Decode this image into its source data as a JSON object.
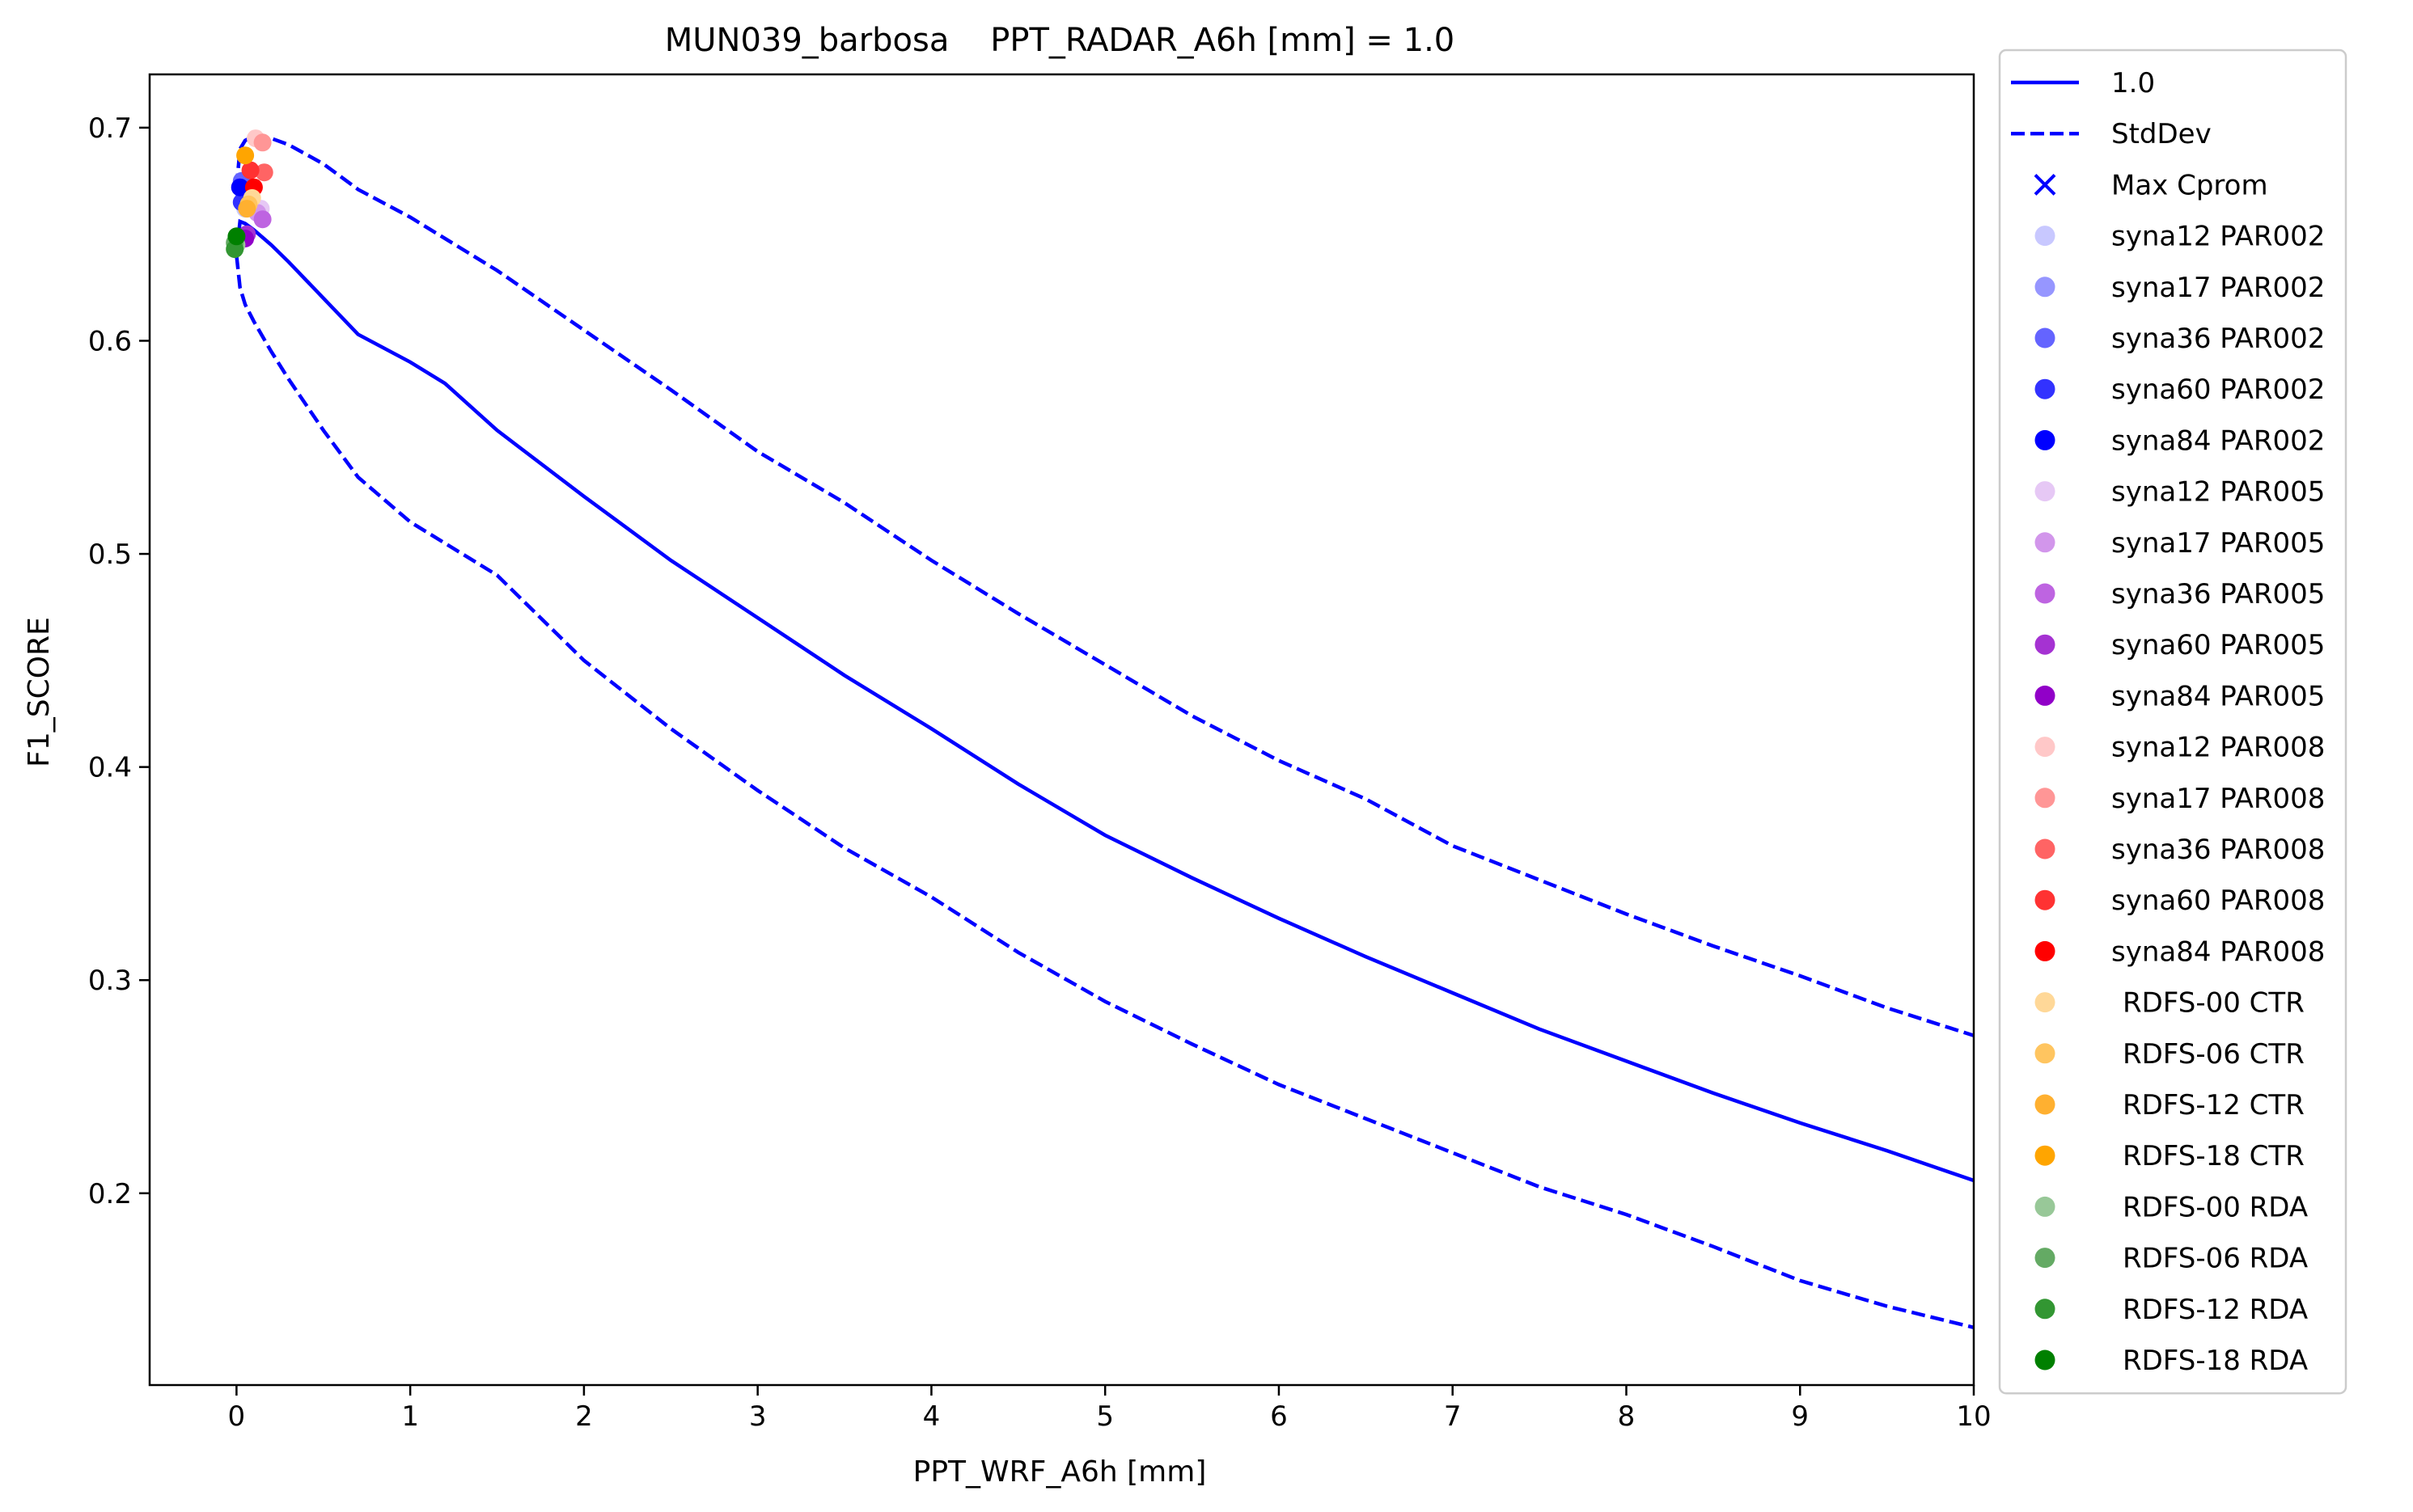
{
  "chart_data": {
    "type": "line",
    "title": "MUN039_barbosa    PPT_RADAR_A6h [mm] = 1.0",
    "xlabel": "PPT_WRF_A6h [mm]",
    "ylabel": "F1_SCORE",
    "xlim": [
      -0.5,
      10
    ],
    "ylim": [
      0.11,
      0.725
    ],
    "xticks": [
      0,
      1,
      2,
      3,
      4,
      5,
      6,
      7,
      8,
      9,
      10
    ],
    "xtick_labels": [
      "0",
      "1",
      "2",
      "3",
      "4",
      "5",
      "6",
      "7",
      "8",
      "9",
      "10"
    ],
    "yticks": [
      0.2,
      0.3,
      0.4,
      0.5,
      0.6,
      0.7
    ],
    "ytick_labels": [
      "0.2",
      "0.3",
      "0.4",
      "0.5",
      "0.6",
      "0.7"
    ],
    "grid": false,
    "legend_position": "outside-right",
    "series": [
      {
        "name": "1.0",
        "style": "solid",
        "color": "#0000ff",
        "x": [
          0,
          0.02,
          0.05,
          0.1,
          0.2,
          0.3,
          0.5,
          0.7,
          1.0,
          1.2,
          1.5,
          2.0,
          2.5,
          3.0,
          3.5,
          4.0,
          4.5,
          5.0,
          5.5,
          6.0,
          6.5,
          7.0,
          7.5,
          8.0,
          8.5,
          9.0,
          9.5,
          10.0
        ],
        "y": [
          0.641,
          0.656,
          0.655,
          0.652,
          0.645,
          0.637,
          0.62,
          0.603,
          0.59,
          0.58,
          0.558,
          0.527,
          0.497,
          0.47,
          0.443,
          0.418,
          0.392,
          0.368,
          0.348,
          0.329,
          0.311,
          0.294,
          0.277,
          0.262,
          0.247,
          0.233,
          0.22,
          0.206
        ]
      },
      {
        "name": "StdDev",
        "style": "dashed",
        "color": "#0000ff",
        "x": [
          0,
          0.02,
          0.05,
          0.1,
          0.2,
          0.3,
          0.5,
          0.7,
          1.0,
          1.5,
          2.0,
          2.5,
          3.0,
          3.5,
          4.0,
          4.5,
          5.0,
          5.5,
          6.0,
          6.5,
          7.0,
          7.5,
          8.0,
          8.5,
          9.0,
          9.5,
          10.0
        ],
        "y": [
          0.672,
          0.69,
          0.694,
          0.696,
          0.695,
          0.692,
          0.683,
          0.671,
          0.658,
          0.633,
          0.605,
          0.577,
          0.548,
          0.524,
          0.497,
          0.472,
          0.448,
          0.424,
          0.403,
          0.385,
          0.363,
          0.347,
          0.331,
          0.316,
          0.302,
          0.287,
          0.274
        ]
      },
      {
        "name": "",
        "style": "dashed",
        "color": "#0000ff",
        "x": [
          0,
          0.02,
          0.05,
          0.1,
          0.2,
          0.3,
          0.5,
          0.7,
          1.0,
          1.5,
          2.0,
          2.5,
          3.0,
          3.5,
          4.0,
          4.5,
          5.0,
          5.5,
          6.0,
          6.5,
          7.0,
          7.5,
          8.0,
          8.5,
          9.0,
          9.5,
          10.0
        ],
        "y": [
          0.64,
          0.625,
          0.617,
          0.609,
          0.595,
          0.582,
          0.558,
          0.536,
          0.515,
          0.49,
          0.45,
          0.418,
          0.389,
          0.362,
          0.339,
          0.313,
          0.29,
          0.27,
          0.251,
          0.235,
          0.219,
          0.203,
          0.19,
          0.175,
          0.159,
          0.147,
          0.137
        ]
      }
    ],
    "points": [
      {
        "label": "syna12 PAR002",
        "color": "#c8c8ff",
        "x": 0.05,
        "y": 0.662
      },
      {
        "label": "syna17 PAR002",
        "color": "#9696ff",
        "x": 0.04,
        "y": 0.67
      },
      {
        "label": "syna36 PAR002",
        "color": "#6464ff",
        "x": 0.03,
        "y": 0.675
      },
      {
        "label": "syna60 PAR002",
        "color": "#3232ff",
        "x": 0.03,
        "y": 0.665
      },
      {
        "label": "syna84 PAR002",
        "color": "#0000ff",
        "x": 0.02,
        "y": 0.672
      },
      {
        "label": "syna12 PAR005",
        "color": "#e6c8f5",
        "x": 0.14,
        "y": 0.662
      },
      {
        "label": "syna17 PAR005",
        "color": "#d296eb",
        "x": 0.12,
        "y": 0.66
      },
      {
        "label": "syna36 PAR005",
        "color": "#be64e1",
        "x": 0.15,
        "y": 0.657
      },
      {
        "label": "syna60 PAR005",
        "color": "#a532d2",
        "x": 0.06,
        "y": 0.65
      },
      {
        "label": "syna84 PAR005",
        "color": "#9100c8",
        "x": 0.05,
        "y": 0.648
      },
      {
        "label": "syna12 PAR008",
        "color": "#ffc8c8",
        "x": 0.11,
        "y": 0.695
      },
      {
        "label": "syna17 PAR008",
        "color": "#ff9696",
        "x": 0.15,
        "y": 0.693
      },
      {
        "label": "syna36 PAR008",
        "color": "#ff6464",
        "x": 0.16,
        "y": 0.679
      },
      {
        "label": "syna60 PAR008",
        "color": "#ff3232",
        "x": 0.08,
        "y": 0.68
      },
      {
        "label": "syna84 PAR008",
        "color": "#ff0000",
        "x": 0.1,
        "y": 0.672
      },
      {
        "label": "RDFS-00 CTR",
        "color": "#ffd898",
        "x": 0.09,
        "y": 0.667
      },
      {
        "label": "RDFS-06 CTR",
        "color": "#ffc560",
        "x": 0.07,
        "y": 0.664
      },
      {
        "label": "RDFS-12 CTR",
        "color": "#ffb030",
        "x": 0.06,
        "y": 0.662
      },
      {
        "label": "RDFS-18 CTR",
        "color": "#ffa500",
        "x": 0.05,
        "y": 0.687
      },
      {
        "label": "RDFS-00 RDA",
        "color": "#98c898",
        "x": 0.0,
        "y": 0.645
      },
      {
        "label": "RDFS-06 RDA",
        "color": "#64aa64",
        "x": -0.01,
        "y": 0.646
      },
      {
        "label": "RDFS-12 RDA",
        "color": "#329632",
        "x": -0.01,
        "y": 0.643
      },
      {
        "label": "RDFS-18 RDA",
        "color": "#008000",
        "x": 0.0,
        "y": 0.649
      }
    ],
    "legend": [
      {
        "label": "1.0",
        "kind": "line",
        "color": "#0000ff"
      },
      {
        "label": "StdDev",
        "kind": "dashed",
        "color": "#0000ff"
      },
      {
        "label": "Max Cprom",
        "kind": "cross",
        "color": "#0000ff"
      },
      {
        "label": "syna12 PAR002",
        "kind": "dot",
        "color": "#c8c8ff"
      },
      {
        "label": "syna17 PAR002",
        "kind": "dot",
        "color": "#9696ff"
      },
      {
        "label": "syna36 PAR002",
        "kind": "dot",
        "color": "#6464ff"
      },
      {
        "label": "syna60 PAR002",
        "kind": "dot",
        "color": "#3232ff"
      },
      {
        "label": "syna84 PAR002",
        "kind": "dot",
        "color": "#0000ff"
      },
      {
        "label": "syna12 PAR005",
        "kind": "dot",
        "color": "#e6c8f5"
      },
      {
        "label": "syna17 PAR005",
        "kind": "dot",
        "color": "#d296eb"
      },
      {
        "label": "syna36 PAR005",
        "kind": "dot",
        "color": "#be64e1"
      },
      {
        "label": "syna60 PAR005",
        "kind": "dot",
        "color": "#a532d2"
      },
      {
        "label": "syna84 PAR005",
        "kind": "dot",
        "color": "#9100c8"
      },
      {
        "label": "syna12 PAR008",
        "kind": "dot",
        "color": "#ffc8c8"
      },
      {
        "label": "syna17 PAR008",
        "kind": "dot",
        "color": "#ff9696"
      },
      {
        "label": "syna36 PAR008",
        "kind": "dot",
        "color": "#ff6464"
      },
      {
        "label": "syna60 PAR008",
        "kind": "dot",
        "color": "#ff3232"
      },
      {
        "label": "syna84 PAR008",
        "kind": "dot",
        "color": "#ff0000"
      },
      {
        "label": "RDFS-00 CTR",
        "kind": "dot",
        "color": "#ffd898"
      },
      {
        "label": "RDFS-06 CTR",
        "kind": "dot",
        "color": "#ffc560"
      },
      {
        "label": "RDFS-12 CTR",
        "kind": "dot",
        "color": "#ffb030"
      },
      {
        "label": "RDFS-18 CTR",
        "kind": "dot",
        "color": "#ffa500"
      },
      {
        "label": "RDFS-00 RDA",
        "kind": "dot",
        "color": "#98c898"
      },
      {
        "label": "RDFS-06 RDA",
        "kind": "dot",
        "color": "#64aa64"
      },
      {
        "label": "RDFS-12 RDA",
        "kind": "dot",
        "color": "#329632"
      },
      {
        "label": "RDFS-18 RDA",
        "kind": "dot",
        "color": "#008000"
      }
    ]
  }
}
